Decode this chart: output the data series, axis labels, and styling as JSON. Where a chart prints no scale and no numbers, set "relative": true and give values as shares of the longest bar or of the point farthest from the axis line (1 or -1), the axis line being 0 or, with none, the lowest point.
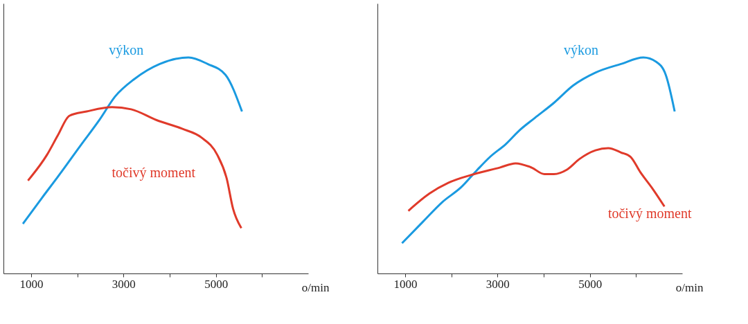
{
  "chart_data": [
    {
      "type": "line",
      "relative": true,
      "xlabel": "o/min",
      "xlim": [
        400,
        7000
      ],
      "xticks": [
        1000,
        {
          "value": 2000,
          "label": null
        },
        3000,
        {
          "value": 4000,
          "label": null
        },
        5000,
        {
          "value": 6000,
          "label": null
        }
      ],
      "grid": false,
      "marker": "none",
      "line_style": "solid",
      "series": [
        {
          "name": "výkon",
          "color": "#1a9ae0",
          "x": [
            821,
            1234,
            1621,
            2062,
            2476,
            2821,
            3234,
            3786,
            4407,
            4821,
            5207,
            5566
          ],
          "values": [
            0.23,
            0.35,
            0.46,
            0.59,
            0.71,
            0.82,
            0.9,
            0.97,
            1.0,
            0.97,
            0.92,
            0.75
          ]
        },
        {
          "name": "točivý moment",
          "color": "#e03a2a",
          "x": [
            931,
            1345,
            1579,
            1828,
            2200,
            2752,
            3166,
            3717,
            4269,
            4683,
            5028,
            5234,
            5372,
            5552
          ],
          "values": [
            0.43,
            0.55,
            0.64,
            0.73,
            0.75,
            0.77,
            0.76,
            0.71,
            0.67,
            0.63,
            0.55,
            0.44,
            0.3,
            0.21
          ]
        }
      ]
    },
    {
      "type": "line",
      "relative": true,
      "xlabel": "o/min",
      "xlim": [
        400,
        7000
      ],
      "xticks": [
        1000,
        {
          "value": 2000,
          "label": null
        },
        3000,
        {
          "value": 4000,
          "label": null
        },
        5000,
        {
          "value": 6000,
          "label": null
        }
      ],
      "grid": false,
      "marker": "none",
      "line_style": "solid",
      "series": [
        {
          "name": "výkon",
          "color": "#1a9ae0",
          "x": [
            931,
            1387,
            1802,
            2217,
            2563,
            2840,
            3185,
            3462,
            3808,
            4223,
            4638,
            5122,
            5675,
            6159,
            6436,
            6643,
            6837
          ],
          "values": [
            0.14,
            0.24,
            0.33,
            0.4,
            0.48,
            0.54,
            0.6,
            0.66,
            0.72,
            0.79,
            0.87,
            0.93,
            0.97,
            1.0,
            0.98,
            0.92,
            0.75
          ]
        },
        {
          "name": "točivý moment",
          "color": "#e03a2a",
          "x": [
            1069,
            1526,
            1940,
            2494,
            3047,
            3393,
            3739,
            4015,
            4223,
            4499,
            4776,
            5122,
            5398,
            5675,
            5882,
            6090,
            6366,
            6615
          ],
          "values": [
            0.29,
            0.37,
            0.42,
            0.46,
            0.49,
            0.51,
            0.49,
            0.46,
            0.46,
            0.48,
            0.53,
            0.57,
            0.58,
            0.56,
            0.54,
            0.47,
            0.39,
            0.31
          ]
        }
      ]
    }
  ]
}
